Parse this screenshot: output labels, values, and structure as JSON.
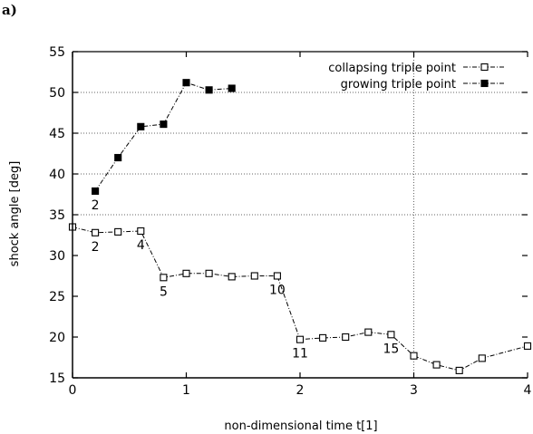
{
  "panel_label": "a)",
  "chart_data": {
    "type": "line",
    "xlabel": "non-dimensional time t[1]",
    "ylabel": "shock angle [deg]",
    "xlim": [
      0,
      4
    ],
    "ylim": [
      15,
      55
    ],
    "xticks": [
      0,
      1,
      2,
      3,
      4
    ],
    "yticks": [
      15,
      20,
      25,
      30,
      35,
      40,
      45,
      50,
      55
    ],
    "grid": "dotted, at y=35,40,45,50 and x=3",
    "legend": "top-right",
    "series": [
      {
        "name": "collapsing triple point",
        "marker": "open-square",
        "line": "dash-dot",
        "x": [
          0.0,
          0.2,
          0.4,
          0.6,
          0.8,
          1.0,
          1.2,
          1.4,
          1.6,
          1.8,
          2.0,
          2.2,
          2.4,
          2.6,
          2.8,
          3.0,
          3.2,
          3.4,
          3.6,
          4.0
        ],
        "y": [
          33.5,
          32.8,
          32.9,
          33.0,
          27.3,
          27.8,
          27.8,
          27.4,
          27.5,
          27.5,
          19.7,
          19.9,
          20.0,
          20.6,
          20.3,
          17.7,
          16.6,
          15.9,
          17.4,
          18.9
        ]
      },
      {
        "name": "growing triple point",
        "marker": "filled-square",
        "line": "dash-dot",
        "x": [
          0.2,
          0.4,
          0.6,
          0.8,
          1.0,
          1.2,
          1.4
        ],
        "y": [
          37.9,
          42.0,
          45.8,
          46.1,
          51.2,
          50.3,
          50.5
        ]
      }
    ],
    "annotations": [
      {
        "text": "2",
        "x": 0.2,
        "y": 37.9
      },
      {
        "text": "2",
        "x": 0.2,
        "y": 32.8
      },
      {
        "text": "4",
        "x": 0.6,
        "y": 33.0
      },
      {
        "text": "5",
        "x": 0.8,
        "y": 27.3
      },
      {
        "text": "10",
        "x": 1.8,
        "y": 27.5
      },
      {
        "text": "11",
        "x": 2.0,
        "y": 19.7
      },
      {
        "text": "15",
        "x": 2.8,
        "y": 20.3
      }
    ]
  }
}
